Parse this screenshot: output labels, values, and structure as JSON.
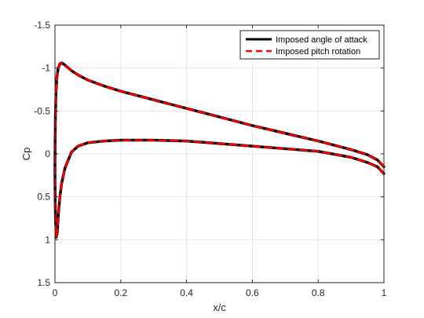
{
  "chart_data": {
    "type": "line",
    "xlabel": "x/c",
    "ylabel": "Cp",
    "xlim": [
      0,
      1
    ],
    "ylim": [
      -1.5,
      1.5
    ],
    "y_reversed": true,
    "grid": true,
    "legend_position": "top-right",
    "x_ticks": [
      0,
      0.2,
      0.4,
      0.6,
      0.8,
      1
    ],
    "x_tick_labels": [
      "0",
      "0.2",
      "0.4",
      "0.6",
      "0.8",
      "1"
    ],
    "y_ticks": [
      -1.5,
      -1,
      -0.5,
      0,
      0.5,
      1,
      1.5
    ],
    "y_tick_labels": [
      "-1.5",
      "-1",
      "-0.5",
      "0",
      "0.5",
      "1",
      "1.5"
    ],
    "series": [
      {
        "name": "Imposed angle of attack",
        "color": "#000000",
        "style": "solid",
        "x": [
          1.0,
          0.98,
          0.95,
          0.9,
          0.85,
          0.8,
          0.7,
          0.6,
          0.5,
          0.4,
          0.3,
          0.2,
          0.15,
          0.1,
          0.07,
          0.05,
          0.035,
          0.025,
          0.02,
          0.015,
          0.01,
          0.006,
          0.003,
          0.0015,
          0.0005,
          0.0,
          0.0003,
          0.001,
          0.002,
          0.004,
          0.007,
          0.01,
          0.015,
          0.02,
          0.03,
          0.05,
          0.07,
          0.1,
          0.15,
          0.2,
          0.25,
          0.3,
          0.4,
          0.5,
          0.6,
          0.7,
          0.8,
          0.9,
          0.95,
          0.98,
          1.0
        ],
        "y": [
          0.15,
          0.07,
          0.01,
          -0.05,
          -0.1,
          -0.15,
          -0.24,
          -0.33,
          -0.43,
          -0.53,
          -0.63,
          -0.73,
          -0.79,
          -0.86,
          -0.92,
          -0.97,
          -1.02,
          -1.05,
          -1.06,
          -1.05,
          -1.0,
          -0.9,
          -0.7,
          -0.45,
          -0.15,
          0.15,
          0.4,
          0.6,
          0.8,
          0.97,
          0.92,
          0.72,
          0.5,
          0.35,
          0.17,
          -0.02,
          -0.09,
          -0.13,
          -0.15,
          -0.16,
          -0.16,
          -0.16,
          -0.15,
          -0.12,
          -0.09,
          -0.06,
          -0.03,
          0.04,
          0.1,
          0.15,
          0.23
        ]
      },
      {
        "name": "Imposed pitch rotation",
        "color": "#ff0000",
        "style": "dashed",
        "x": [
          1.0,
          0.98,
          0.95,
          0.9,
          0.85,
          0.8,
          0.7,
          0.6,
          0.5,
          0.4,
          0.3,
          0.2,
          0.15,
          0.1,
          0.07,
          0.05,
          0.035,
          0.025,
          0.02,
          0.015,
          0.01,
          0.006,
          0.003,
          0.0015,
          0.0005,
          0.0,
          0.0003,
          0.001,
          0.002,
          0.004,
          0.007,
          0.01,
          0.015,
          0.02,
          0.03,
          0.05,
          0.07,
          0.1,
          0.15,
          0.2,
          0.25,
          0.3,
          0.4,
          0.5,
          0.6,
          0.7,
          0.8,
          0.9,
          0.95,
          0.98,
          1.0
        ],
        "y": [
          0.15,
          0.07,
          0.01,
          -0.05,
          -0.1,
          -0.15,
          -0.24,
          -0.33,
          -0.43,
          -0.53,
          -0.63,
          -0.73,
          -0.79,
          -0.86,
          -0.92,
          -0.97,
          -1.02,
          -1.05,
          -1.06,
          -1.05,
          -1.0,
          -0.9,
          -0.7,
          -0.45,
          -0.15,
          0.15,
          0.4,
          0.6,
          0.8,
          0.97,
          0.92,
          0.72,
          0.5,
          0.35,
          0.17,
          -0.02,
          -0.09,
          -0.13,
          -0.15,
          -0.16,
          -0.16,
          -0.16,
          -0.15,
          -0.12,
          -0.09,
          -0.06,
          -0.03,
          0.04,
          0.1,
          0.15,
          0.23
        ]
      }
    ]
  }
}
